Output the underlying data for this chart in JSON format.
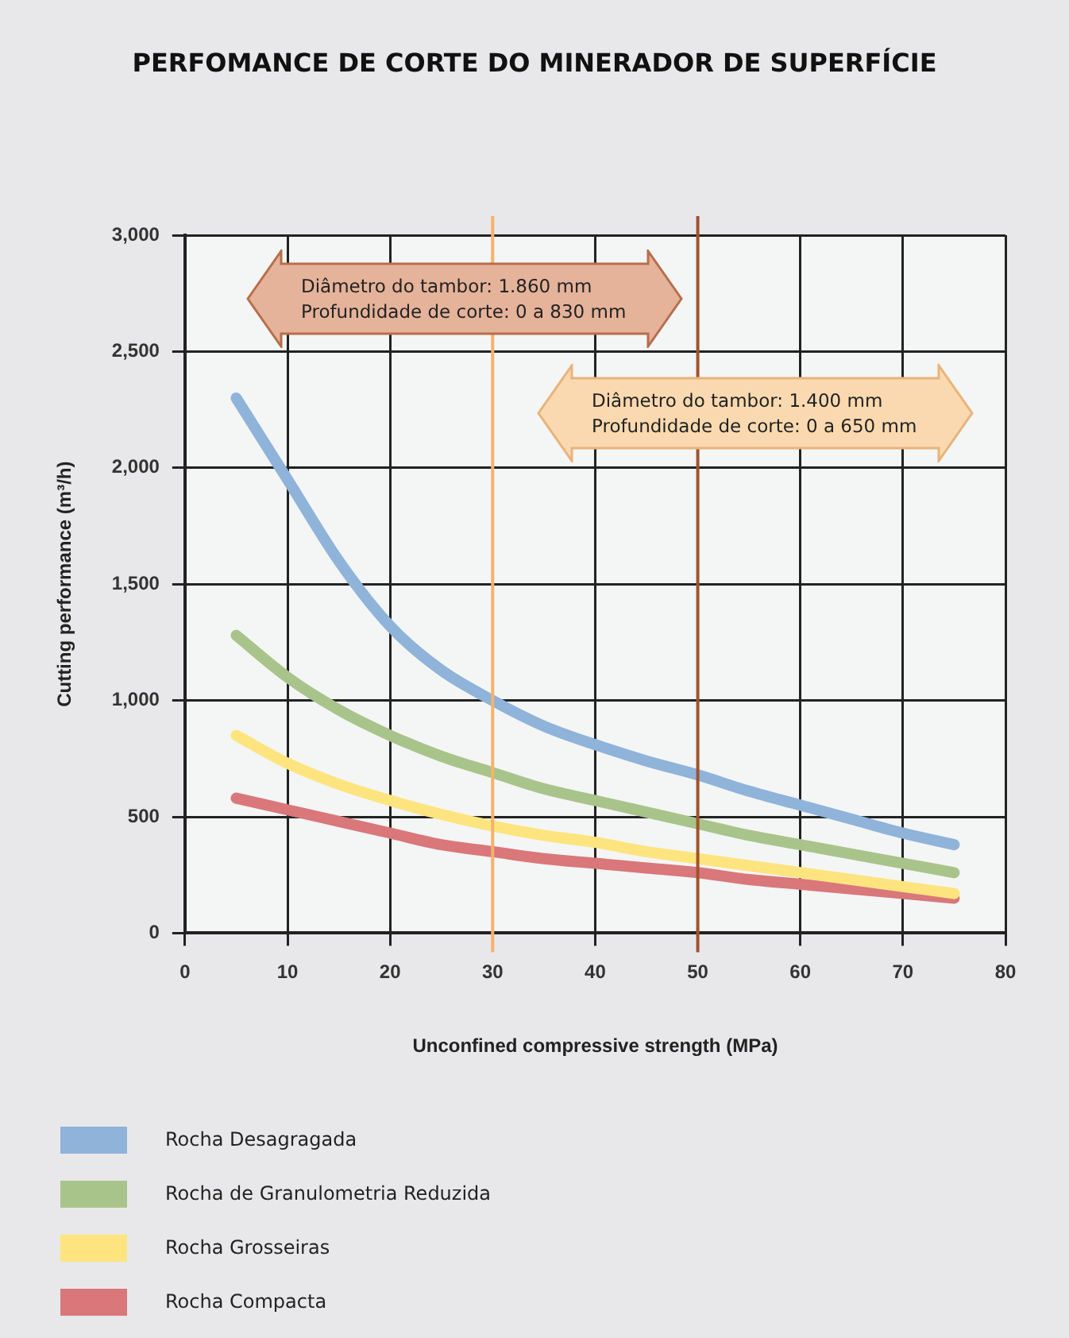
{
  "chart_data": {
    "type": "line",
    "title": "PERFOMANCE DE CORTE DO MINERADOR DE SUPERFÍCIE",
    "xlabel": "Unconfined compressive strength (MPa)",
    "ylabel": "Cutting performance (m³/h)",
    "x": [
      5,
      10,
      15,
      20,
      25,
      30,
      35,
      40,
      45,
      50,
      55,
      60,
      65,
      70,
      75
    ],
    "series": [
      {
        "name": "Rocha Desagragada",
        "color": "#8fb3d9",
        "values": [
          2300,
          1950,
          1600,
          1320,
          1130,
          1000,
          890,
          810,
          740,
          680,
          610,
          550,
          490,
          430,
          380
        ]
      },
      {
        "name": "Rocha de Granulometria Reduzida",
        "color": "#a9c48a",
        "values": [
          1280,
          1100,
          960,
          850,
          760,
          690,
          620,
          570,
          520,
          470,
          420,
          380,
          340,
          300,
          260
        ]
      },
      {
        "name": "Rocha Grosseiras",
        "color": "#fde47f",
        "values": [
          850,
          730,
          640,
          570,
          510,
          460,
          420,
          390,
          350,
          320,
          290,
          260,
          230,
          200,
          170
        ]
      },
      {
        "name": "Rocha Compacta",
        "color": "#d9777a",
        "values": [
          580,
          530,
          480,
          430,
          380,
          350,
          320,
          300,
          280,
          260,
          230,
          210,
          190,
          170,
          150
        ]
      }
    ],
    "xlim": [
      0,
      80
    ],
    "xticks": [
      0,
      10,
      20,
      30,
      40,
      50,
      60,
      70,
      80
    ],
    "ylim": [
      0,
      3000
    ],
    "yticks": [
      0,
      500,
      {
        "value": 1000,
        "label": "1,000"
      },
      {
        "value": 1500,
        "label": "1,500"
      },
      {
        "value": 2000,
        "label": "2,000"
      },
      {
        "value": 2500,
        "label": "2,500"
      },
      {
        "value": 3000,
        "label": "3,000"
      }
    ],
    "ref_lines": [
      {
        "axis": "x",
        "value": 30,
        "color": "#f5b26b"
      },
      {
        "axis": "x",
        "value": 50,
        "color": "#a0522d"
      }
    ],
    "annotations": [
      "Diâmetro do tambor: 1.860 mm\nProfundidade de corte: 0 a 830 mm",
      "Diâmetro do tambor: 1.400 mm\nProfundidade de corte: 0 a 650 mm"
    ],
    "grid": true,
    "legend": "bottom",
    "marker": "none",
    "line_style": "solid"
  }
}
